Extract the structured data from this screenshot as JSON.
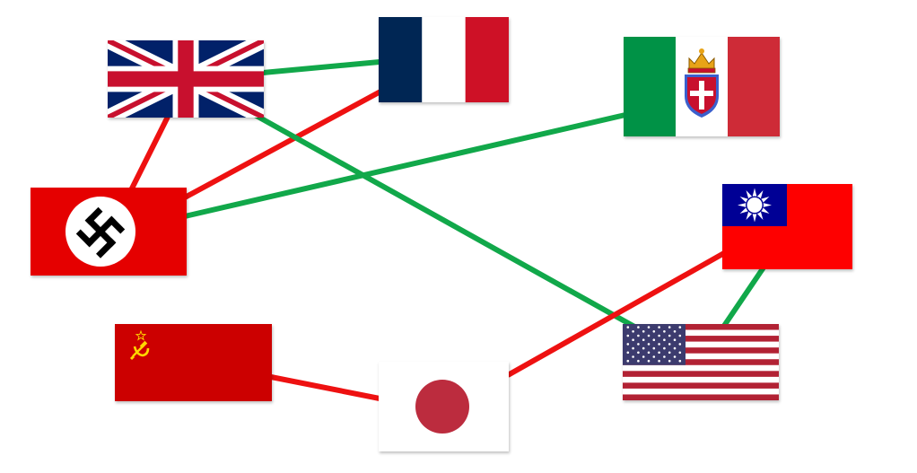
{
  "colors": {
    "background": "#ffffff",
    "hostile_link": "#ee1111",
    "friendly_link": "#11a84a"
  },
  "flags": [
    {
      "id": "uk",
      "icon": "union-jack-flag-icon"
    },
    {
      "id": "france",
      "icon": "french-tricolour-flag-icon"
    },
    {
      "id": "italy",
      "icon": "kingdom-of-italy-flag-icon"
    },
    {
      "id": "germany",
      "icon": "nazi-germany-flag-icon"
    },
    {
      "id": "roc",
      "icon": "republic-of-china-flag-icon"
    },
    {
      "id": "ussr",
      "icon": "soviet-union-flag-icon"
    },
    {
      "id": "japan",
      "icon": "japan-flag-icon"
    },
    {
      "id": "usa",
      "icon": "usa-flag-icon"
    }
  ],
  "links": [
    {
      "from": "uk",
      "to": "france",
      "kind": "friendly"
    },
    {
      "from": "uk",
      "to": "germany",
      "kind": "hostile"
    },
    {
      "from": "france",
      "to": "germany",
      "kind": "hostile"
    },
    {
      "from": "germany",
      "to": "italy",
      "kind": "friendly"
    },
    {
      "from": "uk",
      "to": "usa",
      "kind": "friendly"
    },
    {
      "from": "roc",
      "to": "usa",
      "kind": "friendly"
    },
    {
      "from": "roc",
      "to": "japan",
      "kind": "hostile"
    },
    {
      "from": "ussr",
      "to": "japan",
      "kind": "hostile"
    }
  ]
}
